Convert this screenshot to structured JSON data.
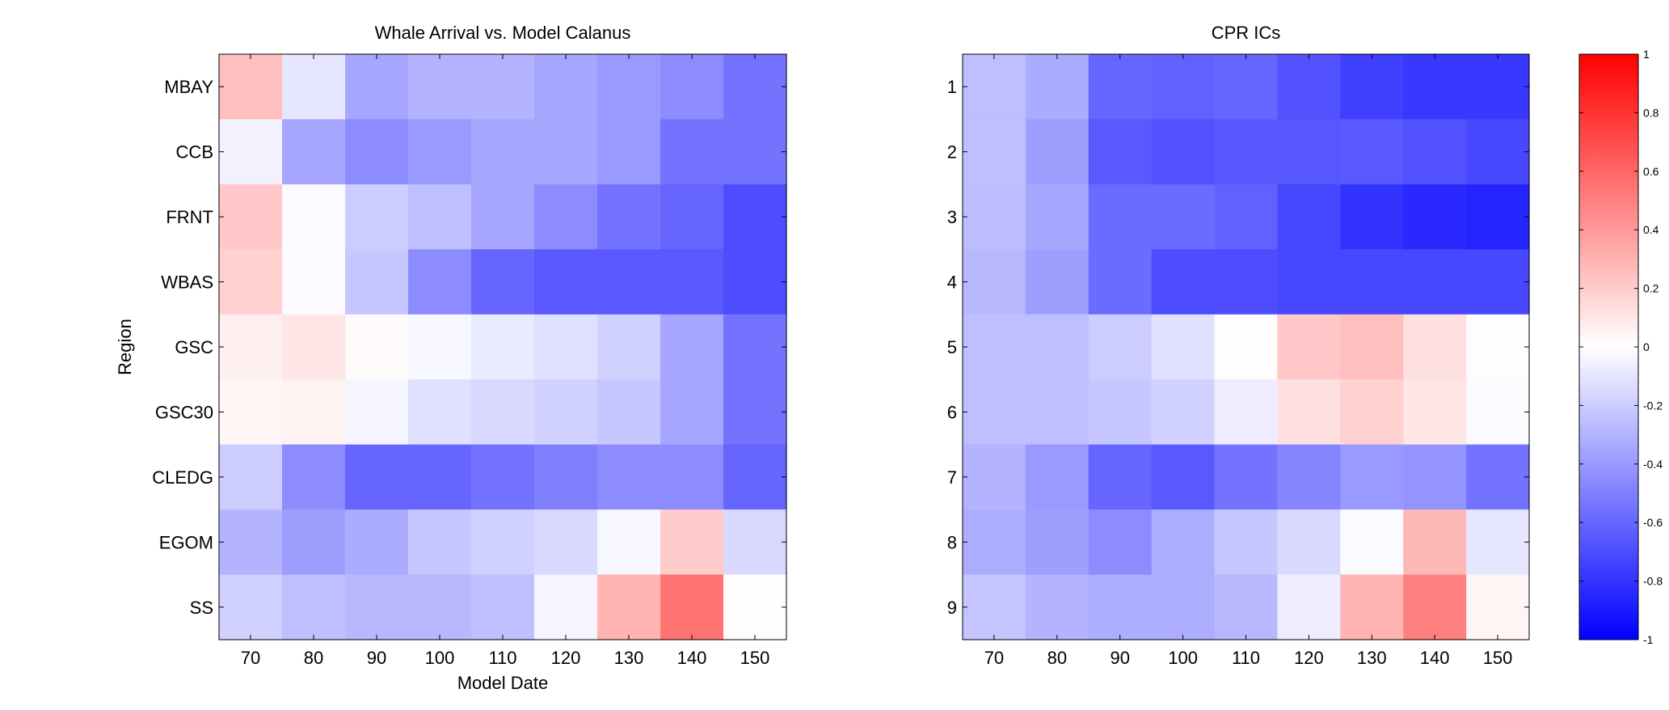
{
  "chart_data": [
    {
      "type": "heatmap",
      "title": "Whale Arrival vs. Model Calanus",
      "xlabel": "Model Date",
      "ylabel": "Region",
      "x": [
        "70",
        "80",
        "90",
        "100",
        "110",
        "120",
        "130",
        "140",
        "150"
      ],
      "y": [
        "MBAY",
        "CCB",
        "FRNT",
        "WBAS",
        "GSC",
        "GSC30",
        "CLEDG",
        "EGOM",
        "SS"
      ],
      "values": [
        [
          0.25,
          -0.1,
          -0.35,
          -0.3,
          -0.3,
          -0.35,
          -0.4,
          -0.45,
          -0.55
        ],
        [
          -0.05,
          -0.35,
          -0.45,
          -0.4,
          -0.35,
          -0.35,
          -0.4,
          -0.55,
          -0.55
        ],
        [
          0.22,
          -0.02,
          -0.2,
          -0.25,
          -0.35,
          -0.45,
          -0.55,
          -0.6,
          -0.7
        ],
        [
          0.18,
          -0.02,
          -0.22,
          -0.45,
          -0.6,
          -0.65,
          -0.65,
          -0.65,
          -0.7
        ],
        [
          0.06,
          0.1,
          0.02,
          -0.03,
          -0.08,
          -0.12,
          -0.18,
          -0.35,
          -0.55
        ],
        [
          0.04,
          0.05,
          -0.04,
          -0.12,
          -0.15,
          -0.18,
          -0.22,
          -0.35,
          -0.55
        ],
        [
          -0.2,
          -0.45,
          -0.6,
          -0.6,
          -0.55,
          -0.5,
          -0.45,
          -0.45,
          -0.6
        ],
        [
          -0.3,
          -0.38,
          -0.33,
          -0.22,
          -0.18,
          -0.15,
          -0.03,
          0.2,
          -0.15
        ],
        [
          -0.18,
          -0.25,
          -0.28,
          -0.28,
          -0.25,
          -0.04,
          0.3,
          0.55,
          0.01
        ]
      ],
      "clim": [
        -1,
        1
      ],
      "colormap": "blue-white-red"
    },
    {
      "type": "heatmap",
      "title": "CPR ICs",
      "xlabel": "",
      "ylabel": "",
      "x": [
        "70",
        "80",
        "90",
        "100",
        "110",
        "120",
        "130",
        "140",
        "150"
      ],
      "y": [
        "1",
        "2",
        "3",
        "4",
        "5",
        "6",
        "7",
        "8",
        "9"
      ],
      "values": [
        [
          -0.25,
          -0.33,
          -0.6,
          -0.62,
          -0.6,
          -0.68,
          -0.75,
          -0.78,
          -0.78
        ],
        [
          -0.25,
          -0.38,
          -0.65,
          -0.68,
          -0.66,
          -0.66,
          -0.65,
          -0.68,
          -0.72
        ],
        [
          -0.26,
          -0.35,
          -0.58,
          -0.58,
          -0.62,
          -0.72,
          -0.8,
          -0.84,
          -0.86
        ],
        [
          -0.28,
          -0.38,
          -0.58,
          -0.7,
          -0.7,
          -0.72,
          -0.72,
          -0.72,
          -0.72
        ],
        [
          -0.25,
          -0.25,
          -0.2,
          -0.12,
          0.01,
          0.22,
          0.25,
          0.12,
          0.01
        ],
        [
          -0.25,
          -0.25,
          -0.22,
          -0.18,
          -0.07,
          0.12,
          0.18,
          0.1,
          -0.02
        ],
        [
          -0.3,
          -0.4,
          -0.6,
          -0.65,
          -0.55,
          -0.48,
          -0.4,
          -0.42,
          -0.55
        ],
        [
          -0.32,
          -0.38,
          -0.45,
          -0.32,
          -0.22,
          -0.15,
          -0.02,
          0.28,
          -0.1
        ],
        [
          -0.23,
          -0.3,
          -0.32,
          -0.32,
          -0.28,
          -0.07,
          0.3,
          0.5,
          0.04
        ]
      ],
      "clim": [
        -1,
        1
      ],
      "colormap": "blue-white-red"
    }
  ],
  "colorbar": {
    "ticks": [
      "1",
      "0.8",
      "0.6",
      "0.4",
      "0.2",
      "0",
      "-0.2",
      "-0.4",
      "-0.6",
      "-0.8",
      "-1"
    ],
    "range": [
      -1,
      1
    ],
    "color_low": "#0000ff",
    "color_mid": "#ffffff",
    "color_high": "#ff0000"
  }
}
